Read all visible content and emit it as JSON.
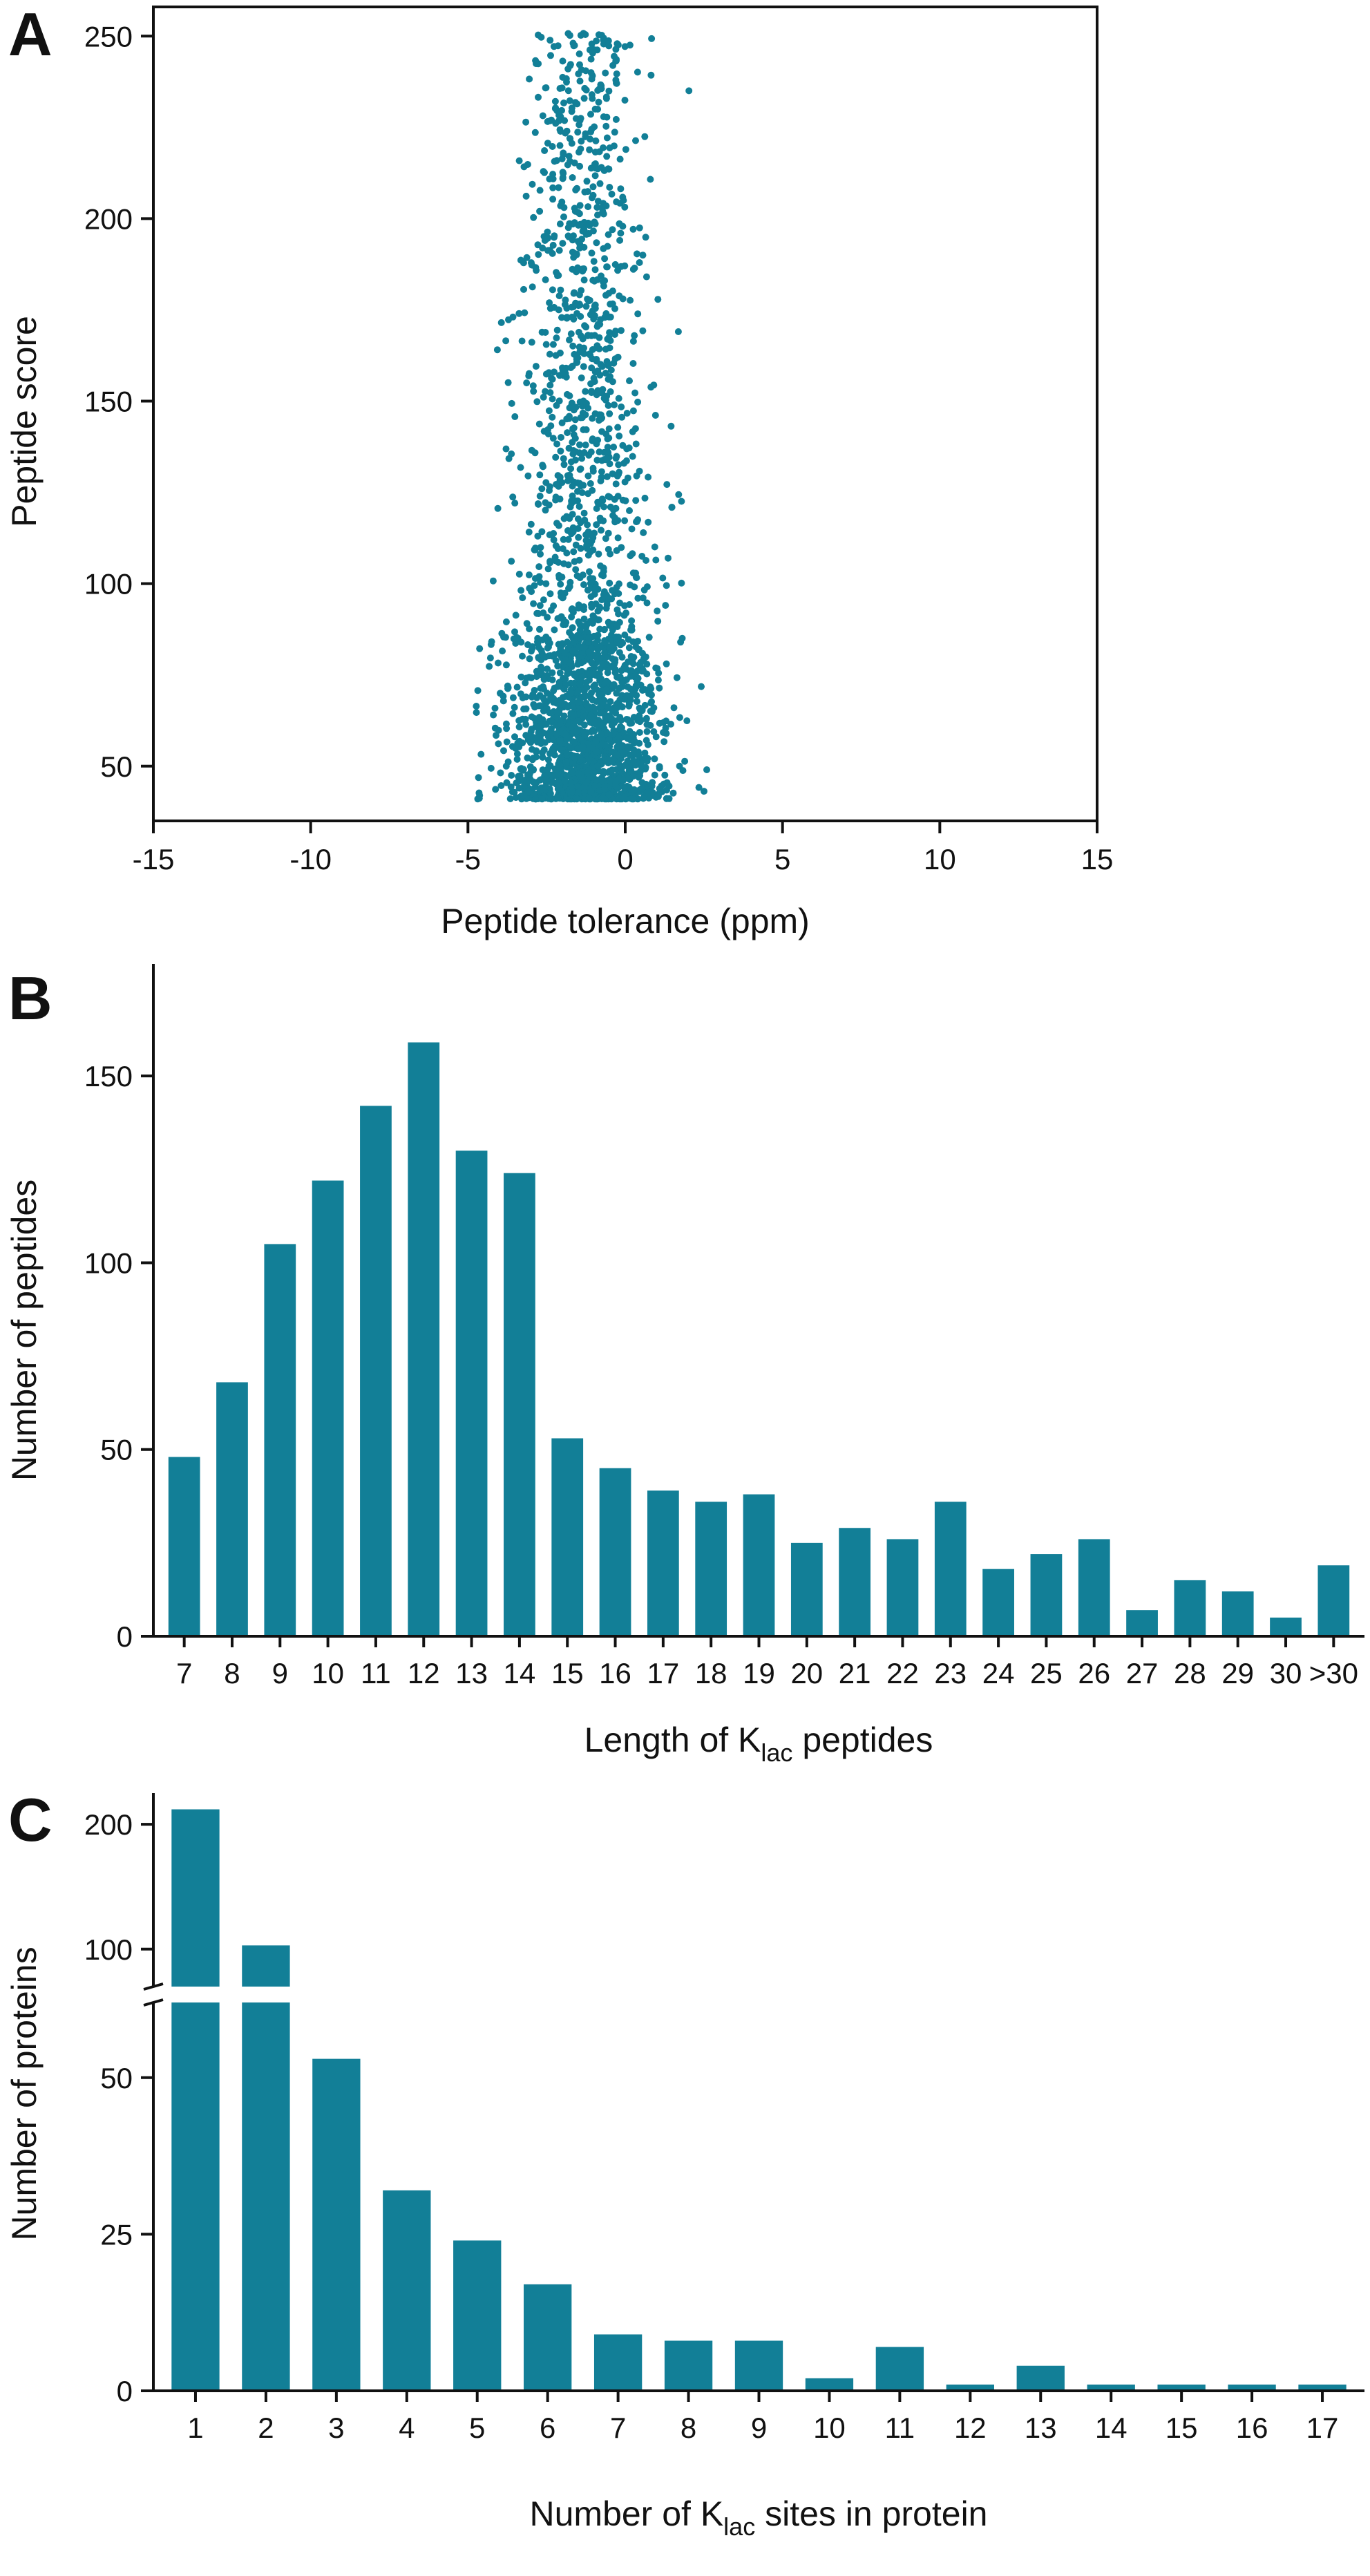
{
  "colors": {
    "series": "#127f97",
    "axis": "#111111"
  },
  "chart_data": [
    {
      "panel": "A",
      "type": "scatter",
      "title": "",
      "xlabel": "Peptide tolerance (ppm)",
      "ylabel": "Peptide score",
      "xlim": [
        -15,
        15
      ],
      "ylim": [
        35,
        258
      ],
      "xticks": [
        -15,
        -10,
        -5,
        0,
        5,
        10,
        15
      ],
      "xtick_labels": [
        "-15",
        "-10",
        "-5",
        "0",
        "5",
        "10",
        "15"
      ],
      "yticks": [
        50,
        100,
        150,
        200,
        250
      ],
      "ytick_labels": [
        "50",
        "100",
        "150",
        "200",
        "250"
      ],
      "distribution": {
        "n_points": 2600,
        "x_center": -1.3,
        "x_spread": 1.1,
        "x_min": -5.0,
        "x_max": 2.6,
        "y_min": 41,
        "y_mode": 70,
        "y_max": 251
      }
    },
    {
      "panel": "B",
      "type": "bar",
      "title": "",
      "xlabel": "Length of K",
      "xlabel_subscript": "lac",
      "xlabel_suffix": " peptides",
      "ylabel": "Number of peptides",
      "ylim": [
        0,
        180
      ],
      "yticks": [
        0,
        50,
        100,
        150
      ],
      "ytick_labels": [
        "0",
        "50",
        "100",
        "150"
      ],
      "categories": [
        "7",
        "8",
        "9",
        "10",
        "11",
        "12",
        "13",
        "14",
        "15",
        "16",
        "17",
        "18",
        "19",
        "20",
        "21",
        "22",
        "23",
        "24",
        "25",
        "26",
        "27",
        "28",
        "29",
        "30",
        ">30"
      ],
      "values": [
        48,
        68,
        105,
        122,
        142,
        159,
        130,
        124,
        53,
        45,
        39,
        36,
        38,
        25,
        29,
        26,
        36,
        18,
        22,
        26,
        7,
        15,
        12,
        5,
        19
      ]
    },
    {
      "panel": "C",
      "type": "bar",
      "title": "",
      "xlabel": "Number of K",
      "xlabel_subscript": "lac",
      "xlabel_suffix": " sites in protein",
      "ylabel": "Number of proteins",
      "broken_axis": {
        "lower_range": [
          0,
          62
        ],
        "upper_range": [
          70,
          225
        ]
      },
      "yticks_lower": [
        0,
        25,
        50
      ],
      "ytick_labels_lower": [
        "0",
        "25",
        "50"
      ],
      "yticks_upper": [
        100,
        200
      ],
      "ytick_labels_upper": [
        "100",
        "200"
      ],
      "categories": [
        "1",
        "2",
        "3",
        "4",
        "5",
        "6",
        "7",
        "8",
        "9",
        "10",
        "11",
        "12",
        "13",
        "14",
        "15",
        "16",
        "17"
      ],
      "values": [
        212,
        103,
        53,
        32,
        24,
        17,
        9,
        8,
        8,
        2,
        7,
        1,
        4,
        1,
        1,
        1,
        1
      ]
    }
  ]
}
